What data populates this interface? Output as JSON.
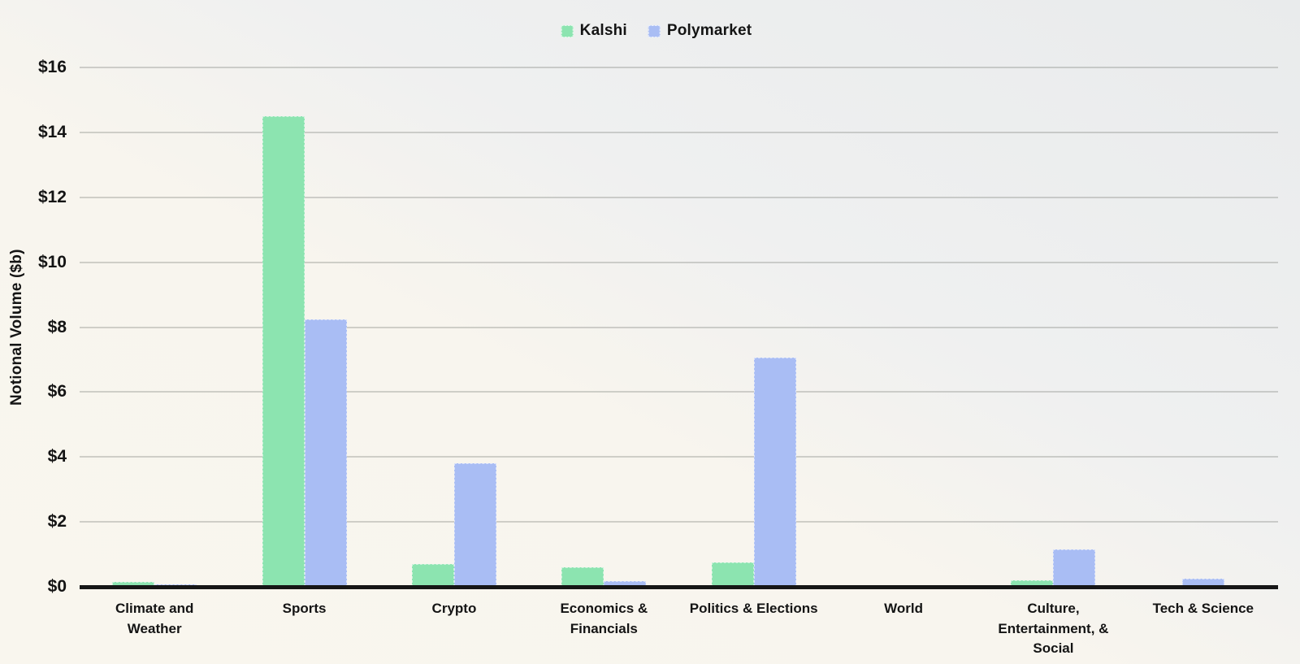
{
  "chart_data": {
    "type": "bar",
    "ylabel": "Notional Volume ($b)",
    "ylim": [
      0,
      16
    ],
    "grid": true,
    "legend_position": "top-center",
    "y_ticks": [
      {
        "value": 0,
        "label": "$0"
      },
      {
        "value": 2,
        "label": "$2"
      },
      {
        "value": 4,
        "label": "$4"
      },
      {
        "value": 6,
        "label": "$6"
      },
      {
        "value": 8,
        "label": "$8"
      },
      {
        "value": 10,
        "label": "$10"
      },
      {
        "value": 12,
        "label": "$12"
      },
      {
        "value": 14,
        "label": "$14"
      },
      {
        "value": 16,
        "label": "$16"
      }
    ],
    "categories": [
      "Climate and Weather",
      "Sports",
      "Crypto",
      "Economics & Financials",
      "Politics & Elections",
      "World",
      "Culture, Entertainment, & Social",
      "Tech & Science"
    ],
    "categories_display": [
      "Climate and\nWeather",
      "Sports",
      "Crypto",
      "Economics &\nFinancials",
      "Politics & Elections",
      "World",
      "Culture,\nEntertainment, &\nSocial",
      "Tech & Science"
    ],
    "series": [
      {
        "name": "Kalshi",
        "color": "#8ce4b0",
        "values": [
          0.15,
          14.5,
          0.7,
          0.6,
          0.75,
          0,
          0.2,
          0
        ]
      },
      {
        "name": "Polymarket",
        "color": "#a9bdf4",
        "values": [
          0.08,
          8.25,
          3.8,
          0.18,
          7.05,
          0,
          1.15,
          0.25
        ]
      }
    ]
  },
  "colors": {
    "kalshi_green": "#8ce4b0",
    "polymarket_blue": "#a9bdf4",
    "gridline": "#8c8e8a",
    "axis_line": "#161616",
    "text": "#141414",
    "background_warm": "#f9f6ee",
    "background_cool": "#e9ebec"
  }
}
